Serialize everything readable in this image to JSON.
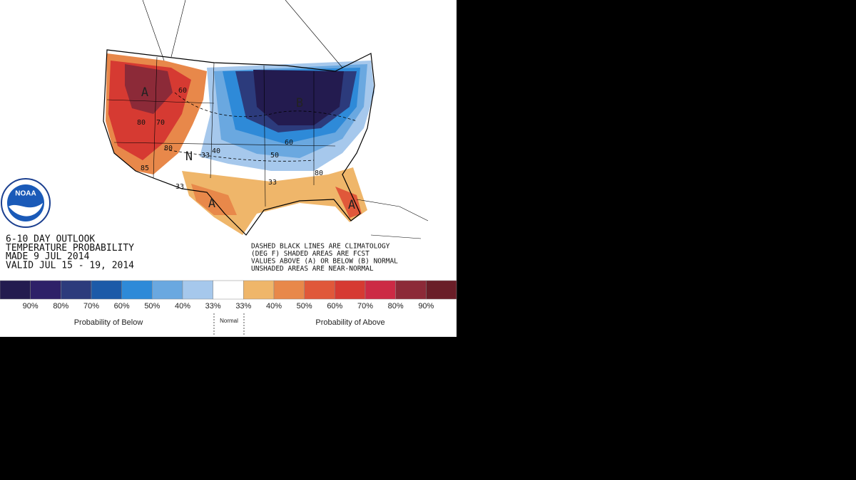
{
  "header": {
    "lines": [
      "6-10 DAY OUTLOOK",
      "TEMPERATURE PROBABILITY",
      "MADE  9 JUL 2014",
      "VALID  JUL 15 - 19, 2014"
    ]
  },
  "note": {
    "lines": [
      "DASHED BLACK LINES ARE CLIMATOLOGY",
      "(DEG F) SHADED AREAS ARE FCST",
      "VALUES ABOVE (A) OR BELOW (B) NORMAL",
      "UNSHADED AREAS ARE NEAR-NORMAL"
    ]
  },
  "logo": "NOAA",
  "map_labels": [
    "A",
    "60",
    "80",
    "70",
    "B",
    "N",
    "33",
    "40",
    "50",
    "60",
    "80",
    "33",
    "33",
    "A",
    "A",
    "80",
    "85"
  ],
  "legend": {
    "colors": [
      "#231b4f",
      "#2e2168",
      "#2c3b7c",
      "#1c5aa8",
      "#2e8ad8",
      "#6aa8e0",
      "#a6c8ec",
      "#ffffff",
      "#efb66a",
      "#e8884a",
      "#e0583a",
      "#d63a32",
      "#cc2a45",
      "#8c2a38",
      "#6a1e28"
    ],
    "labels": [
      "90%",
      "80%",
      "70%",
      "60%",
      "50%",
      "40%",
      "33%",
      "33%",
      "40%",
      "50%",
      "60%",
      "70%",
      "80%",
      "90%"
    ],
    "below": "Probability of Below",
    "normal": "Normal",
    "above": "Probability of Above"
  }
}
